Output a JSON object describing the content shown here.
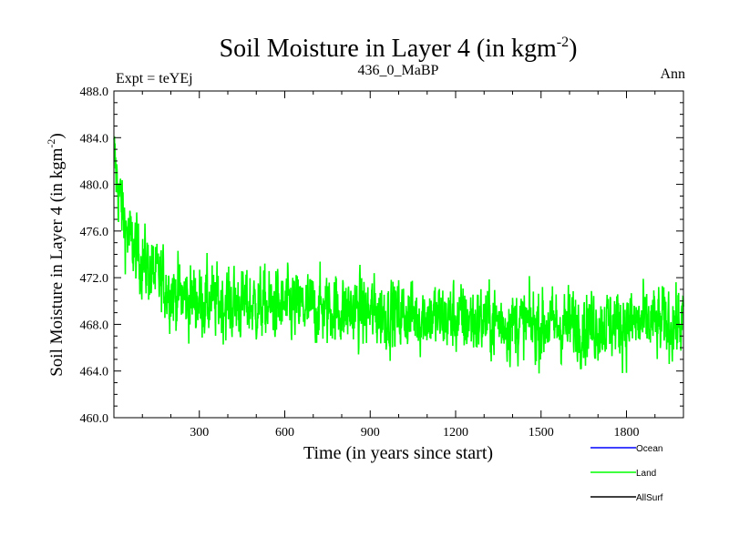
{
  "chart_data": {
    "type": "line",
    "title_main": "Soil Moisture in Layer 4 (in kgm",
    "title_sup": "-2",
    "title_close": ")",
    "subtitle_left": "Expt = teYEj",
    "subtitle_center": "436_0_MaBP",
    "subtitle_right": "Ann",
    "xlabel": "Time (in years since start)",
    "ylabel_main": "Soil Moisture in Layer 4 (in kgm",
    "ylabel_sup": "-2",
    "ylabel_close": ")",
    "xlim": [
      0,
      2000
    ],
    "ylim": [
      460,
      488
    ],
    "xticks": [
      300,
      600,
      900,
      1200,
      1500,
      1800
    ],
    "xtick_labels": [
      "300",
      "600",
      "900",
      "1200",
      "1500",
      "1800"
    ],
    "yticks": [
      460,
      464,
      468,
      472,
      476,
      480,
      484,
      488
    ],
    "ytick_labels": [
      "460.0",
      "464.0",
      "468.0",
      "472.0",
      "476.0",
      "480.0",
      "484.0",
      "488.0"
    ],
    "legend": [
      {
        "name": "Ocean",
        "color": "#0000ff"
      },
      {
        "name": "Land",
        "color": "#00ff00"
      },
      {
        "name": "AllSurf",
        "color": "#000000"
      }
    ],
    "series": [
      {
        "name": "Land",
        "color": "#00ff00",
        "noise_amplitude": 2.6,
        "x": [
          0,
          10,
          20,
          35,
          50,
          70,
          100,
          150,
          200,
          250,
          300,
          400,
          500,
          600,
          700,
          800,
          900,
          1000,
          1100,
          1200,
          1300,
          1400,
          1500,
          1600,
          1700,
          1800,
          1900,
          2000
        ],
        "values": [
          482.5,
          480.5,
          479.0,
          477.0,
          475.5,
          474.5,
          473.5,
          472.0,
          471.0,
          470.2,
          470.0,
          469.8,
          469.6,
          469.5,
          469.4,
          469.3,
          469.0,
          468.9,
          468.7,
          468.5,
          468.3,
          468.1,
          467.9,
          467.9,
          468.0,
          468.1,
          468.0,
          468.2
        ]
      }
    ]
  }
}
